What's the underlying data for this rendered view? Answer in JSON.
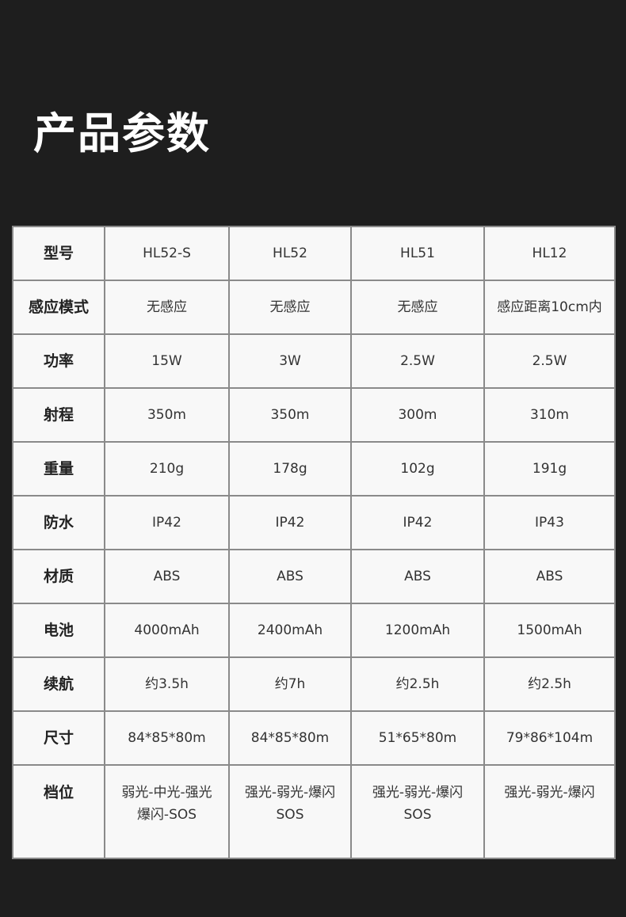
{
  "title": "产品参数",
  "table": {
    "rows": [
      {
        "label": "型号",
        "values": [
          [
            "HL52-S"
          ],
          [
            "HL52"
          ],
          [
            "HL51"
          ],
          [
            "HL12"
          ]
        ]
      },
      {
        "label": "感应模式",
        "values": [
          [
            "无感应"
          ],
          [
            "无感应"
          ],
          [
            "无感应"
          ],
          [
            "感应距离10cm内"
          ]
        ]
      },
      {
        "label": "功率",
        "values": [
          [
            "15W"
          ],
          [
            "3W"
          ],
          [
            "2.5W"
          ],
          [
            "2.5W"
          ]
        ]
      },
      {
        "label": "射程",
        "values": [
          [
            "350m"
          ],
          [
            "350m"
          ],
          [
            "300m"
          ],
          [
            "310m"
          ]
        ]
      },
      {
        "label": "重量",
        "values": [
          [
            "210g"
          ],
          [
            "178g"
          ],
          [
            "102g"
          ],
          [
            "191g"
          ]
        ]
      },
      {
        "label": "防水",
        "values": [
          [
            "IP42"
          ],
          [
            "IP42"
          ],
          [
            "IP42"
          ],
          [
            "IP43"
          ]
        ]
      },
      {
        "label": "材质",
        "values": [
          [
            "ABS"
          ],
          [
            "ABS"
          ],
          [
            "ABS"
          ],
          [
            "ABS"
          ]
        ]
      },
      {
        "label": "电池",
        "values": [
          [
            "4000mAh"
          ],
          [
            "2400mAh"
          ],
          [
            "1200mAh"
          ],
          [
            "1500mAh"
          ]
        ]
      },
      {
        "label": "续航",
        "values": [
          [
            "约3.5h"
          ],
          [
            "约7h"
          ],
          [
            "约2.5h"
          ],
          [
            "约2.5h"
          ]
        ]
      },
      {
        "label": "尺寸",
        "values": [
          [
            "84*85*80m"
          ],
          [
            "84*85*80m"
          ],
          [
            "51*65*80m"
          ],
          [
            "79*86*104m"
          ]
        ]
      },
      {
        "label": "档位",
        "values": [
          [
            "弱光-中光-强光",
            "爆闪-SOS"
          ],
          [
            "强光-弱光-爆闪",
            "SOS"
          ],
          [
            "强光-弱光-爆闪",
            "SOS"
          ],
          [
            "强光-弱光-爆闪"
          ]
        ]
      }
    ]
  }
}
